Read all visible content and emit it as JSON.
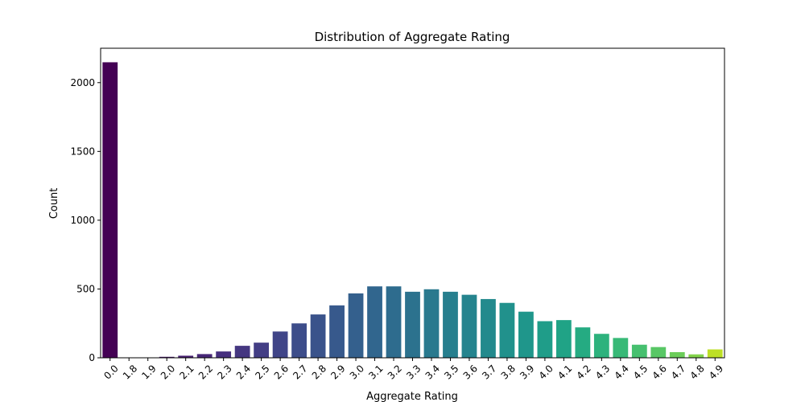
{
  "chart_data": {
    "type": "bar",
    "title": "Distribution of Aggregate Rating",
    "xlabel": "Aggregate Rating",
    "ylabel": "Count",
    "categories": [
      "0.0",
      "1.8",
      "1.9",
      "2.0",
      "2.1",
      "2.2",
      "2.3",
      "2.4",
      "2.5",
      "2.6",
      "2.7",
      "2.8",
      "2.9",
      "3.0",
      "3.1",
      "3.2",
      "3.3",
      "3.4",
      "3.5",
      "3.6",
      "3.7",
      "3.8",
      "3.9",
      "4.0",
      "4.1",
      "4.2",
      "4.3",
      "4.4",
      "4.5",
      "4.6",
      "4.7",
      "4.8",
      "4.9"
    ],
    "values": [
      2148,
      1,
      2,
      7,
      15,
      27,
      46,
      87,
      110,
      191,
      250,
      315,
      381,
      468,
      519,
      519,
      480,
      498,
      480,
      458,
      427,
      399,
      335,
      266,
      274,
      221,
      174,
      144,
      95,
      78,
      41,
      25,
      61
    ],
    "ylim": [
      0,
      2250
    ],
    "yticks": [
      0,
      500,
      1000,
      1500,
      2000
    ],
    "colormap": "viridis",
    "colors": [
      "#440154",
      "#46085c",
      "#471063",
      "#48186a",
      "#482071",
      "#472777",
      "#462f7e",
      "#453781",
      "#433e85",
      "#404588",
      "#3d4d8a",
      "#3a538b",
      "#37598c",
      "#34608d",
      "#31668e",
      "#2e6c8e",
      "#2c728e",
      "#29798e",
      "#277f8e",
      "#25848e",
      "#238a8d",
      "#21918c",
      "#1f968b",
      "#1f9d89",
      "#20a386",
      "#25ab82",
      "#2db27d",
      "#38b977",
      "#46c06f",
      "#58c765",
      "#6ccd5a",
      "#83d34b",
      "#bddf26"
    ],
    "grid": false,
    "legend": "none"
  }
}
